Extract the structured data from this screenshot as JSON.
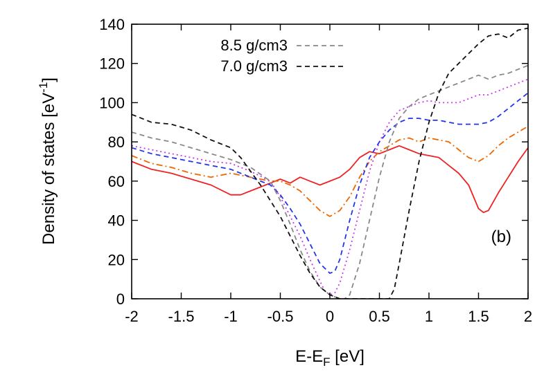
{
  "chart_data": {
    "type": "line",
    "xlabel": {
      "main": "E-E",
      "sub": "F",
      "rest": " [eV]"
    },
    "ylabel": {
      "main": "Density of states [eV",
      "sup": "-1",
      "rest": "]"
    },
    "xlim": [
      -2,
      2
    ],
    "ylim": [
      0,
      140
    ],
    "xticks": [
      -2,
      -1.5,
      -1,
      -0.5,
      0,
      0.5,
      1,
      1.5,
      2
    ],
    "yticks": [
      0,
      20,
      40,
      60,
      80,
      100,
      120,
      140
    ],
    "xtick_labels": [
      "-2",
      "-1.5",
      "-1",
      "-0.5",
      "0",
      "0.5",
      "1",
      "1.5",
      "2"
    ],
    "ytick_labels": [
      "0",
      "20",
      "40",
      "60",
      "80",
      "100",
      "120",
      "140"
    ],
    "grid": false,
    "legend_placement": "top-left",
    "annotation": "(b)",
    "series": [
      {
        "name": "",
        "color": "#ee2222",
        "dash": "solid",
        "in_legend": false,
        "x": [
          -2,
          -1.8,
          -1.6,
          -1.4,
          -1.2,
          -1.0,
          -0.9,
          -0.8,
          -0.7,
          -0.6,
          -0.5,
          -0.4,
          -0.3,
          -0.2,
          -0.1,
          0,
          0.1,
          0.2,
          0.3,
          0.4,
          0.5,
          0.6,
          0.7,
          0.8,
          0.9,
          1.0,
          1.1,
          1.2,
          1.3,
          1.4,
          1.5,
          1.55,
          1.6,
          1.7,
          1.8,
          1.9,
          2.0
        ],
        "y": [
          70,
          66,
          64,
          61,
          58,
          53,
          53,
          55,
          57,
          59,
          61,
          59,
          62,
          60,
          58,
          60,
          62,
          66,
          72,
          75,
          74,
          76,
          78,
          76,
          74,
          73,
          72,
          68,
          64,
          58,
          46,
          44,
          45,
          54,
          62,
          70,
          77
        ]
      },
      {
        "name": "",
        "color": "#ee6600",
        "dash": "dashdot",
        "in_legend": false,
        "x": [
          -2,
          -1.8,
          -1.6,
          -1.4,
          -1.2,
          -1.0,
          -0.8,
          -0.6,
          -0.5,
          -0.4,
          -0.3,
          -0.2,
          -0.1,
          0,
          0.1,
          0.2,
          0.3,
          0.4,
          0.5,
          0.6,
          0.7,
          0.8,
          0.9,
          1.0,
          1.1,
          1.2,
          1.3,
          1.4,
          1.5,
          1.6,
          1.7,
          1.8,
          1.9,
          2.0
        ],
        "y": [
          73,
          69,
          67,
          64,
          62,
          64,
          62,
          60,
          60,
          58,
          55,
          50,
          45,
          42,
          45,
          52,
          62,
          70,
          75,
          78,
          81,
          82,
          80,
          82,
          81,
          80,
          76,
          72,
          70,
          73,
          78,
          82,
          85,
          88
        ]
      },
      {
        "name": "",
        "color": "#cc33ee",
        "dash": "dotted",
        "in_legend": false,
        "x": [
          -2,
          -1.8,
          -1.6,
          -1.4,
          -1.2,
          -1.0,
          -0.8,
          -0.6,
          -0.5,
          -0.4,
          -0.3,
          -0.2,
          -0.1,
          -0.05,
          0,
          0.05,
          0.1,
          0.2,
          0.3,
          0.4,
          0.5,
          0.6,
          0.7,
          0.8,
          0.9,
          1.0,
          1.1,
          1.2,
          1.3,
          1.4,
          1.5,
          1.6,
          1.7,
          1.8,
          1.9,
          2.0
        ],
        "y": [
          78,
          76,
          74,
          72,
          70,
          69,
          65,
          60,
          52,
          42,
          32,
          20,
          9,
          4,
          2,
          3,
          8,
          25,
          45,
          65,
          80,
          90,
          96,
          98,
          100,
          101,
          100,
          100,
          100,
          102,
          104,
          104,
          106,
          108,
          110,
          112
        ]
      },
      {
        "name": "",
        "color": "#2233ee",
        "dash": "dashed",
        "in_legend": false,
        "x": [
          -2,
          -1.8,
          -1.6,
          -1.4,
          -1.2,
          -1.0,
          -0.8,
          -0.6,
          -0.5,
          -0.4,
          -0.3,
          -0.2,
          -0.1,
          0,
          0.05,
          0.1,
          0.2,
          0.3,
          0.4,
          0.5,
          0.6,
          0.7,
          0.8,
          0.9,
          1.0,
          1.1,
          1.2,
          1.3,
          1.4,
          1.5,
          1.6,
          1.7,
          1.8,
          1.9,
          2.0
        ],
        "y": [
          77,
          74,
          72,
          70,
          68,
          66,
          62,
          58,
          53,
          46,
          38,
          28,
          18,
          13,
          14,
          20,
          40,
          58,
          72,
          80,
          86,
          90,
          92,
          92,
          91,
          91,
          90,
          89,
          89,
          89,
          90,
          93,
          97,
          101,
          105
        ]
      },
      {
        "name": "8.5 g/cm3",
        "color": "#888888",
        "dash": "dashed",
        "in_legend": true,
        "x": [
          -2,
          -1.8,
          -1.6,
          -1.4,
          -1.2,
          -1.0,
          -0.8,
          -0.6,
          -0.5,
          -0.4,
          -0.3,
          -0.2,
          -0.1,
          0,
          0.1,
          0.15,
          0.2,
          0.3,
          0.4,
          0.5,
          0.6,
          0.7,
          0.8,
          0.9,
          1.0,
          1.1,
          1.2,
          1.3,
          1.4,
          1.5,
          1.6,
          1.7,
          1.8,
          1.9,
          2.0
        ],
        "y": [
          85,
          82,
          80,
          77,
          74,
          71,
          67,
          60,
          50,
          38,
          25,
          14,
          6,
          2,
          0,
          0,
          2,
          18,
          40,
          62,
          80,
          92,
          98,
          102,
          104,
          106,
          108,
          110,
          112,
          114,
          112,
          114,
          115,
          117,
          119
        ]
      },
      {
        "name": "7.0 g/cm3",
        "color": "#111111",
        "dash": "dashed",
        "in_legend": true,
        "x": [
          -2,
          -1.8,
          -1.6,
          -1.4,
          -1.2,
          -1.0,
          -0.9,
          -0.8,
          -0.7,
          -0.6,
          -0.5,
          -0.4,
          -0.3,
          -0.2,
          -0.1,
          0,
          0.1,
          0.2,
          0.3,
          0.4,
          0.5,
          0.55,
          0.6,
          0.65,
          0.7,
          0.8,
          0.9,
          1.0,
          1.1,
          1.2,
          1.3,
          1.4,
          1.5,
          1.6,
          1.7,
          1.8,
          1.9,
          2.0
        ],
        "y": [
          94,
          90,
          89,
          86,
          81,
          77,
          72,
          65,
          58,
          50,
          42,
          32,
          22,
          13,
          6,
          2,
          0,
          0,
          0,
          0,
          0,
          0,
          0,
          5,
          18,
          45,
          70,
          90,
          105,
          115,
          120,
          125,
          130,
          134,
          135,
          133,
          137,
          138
        ]
      }
    ]
  }
}
